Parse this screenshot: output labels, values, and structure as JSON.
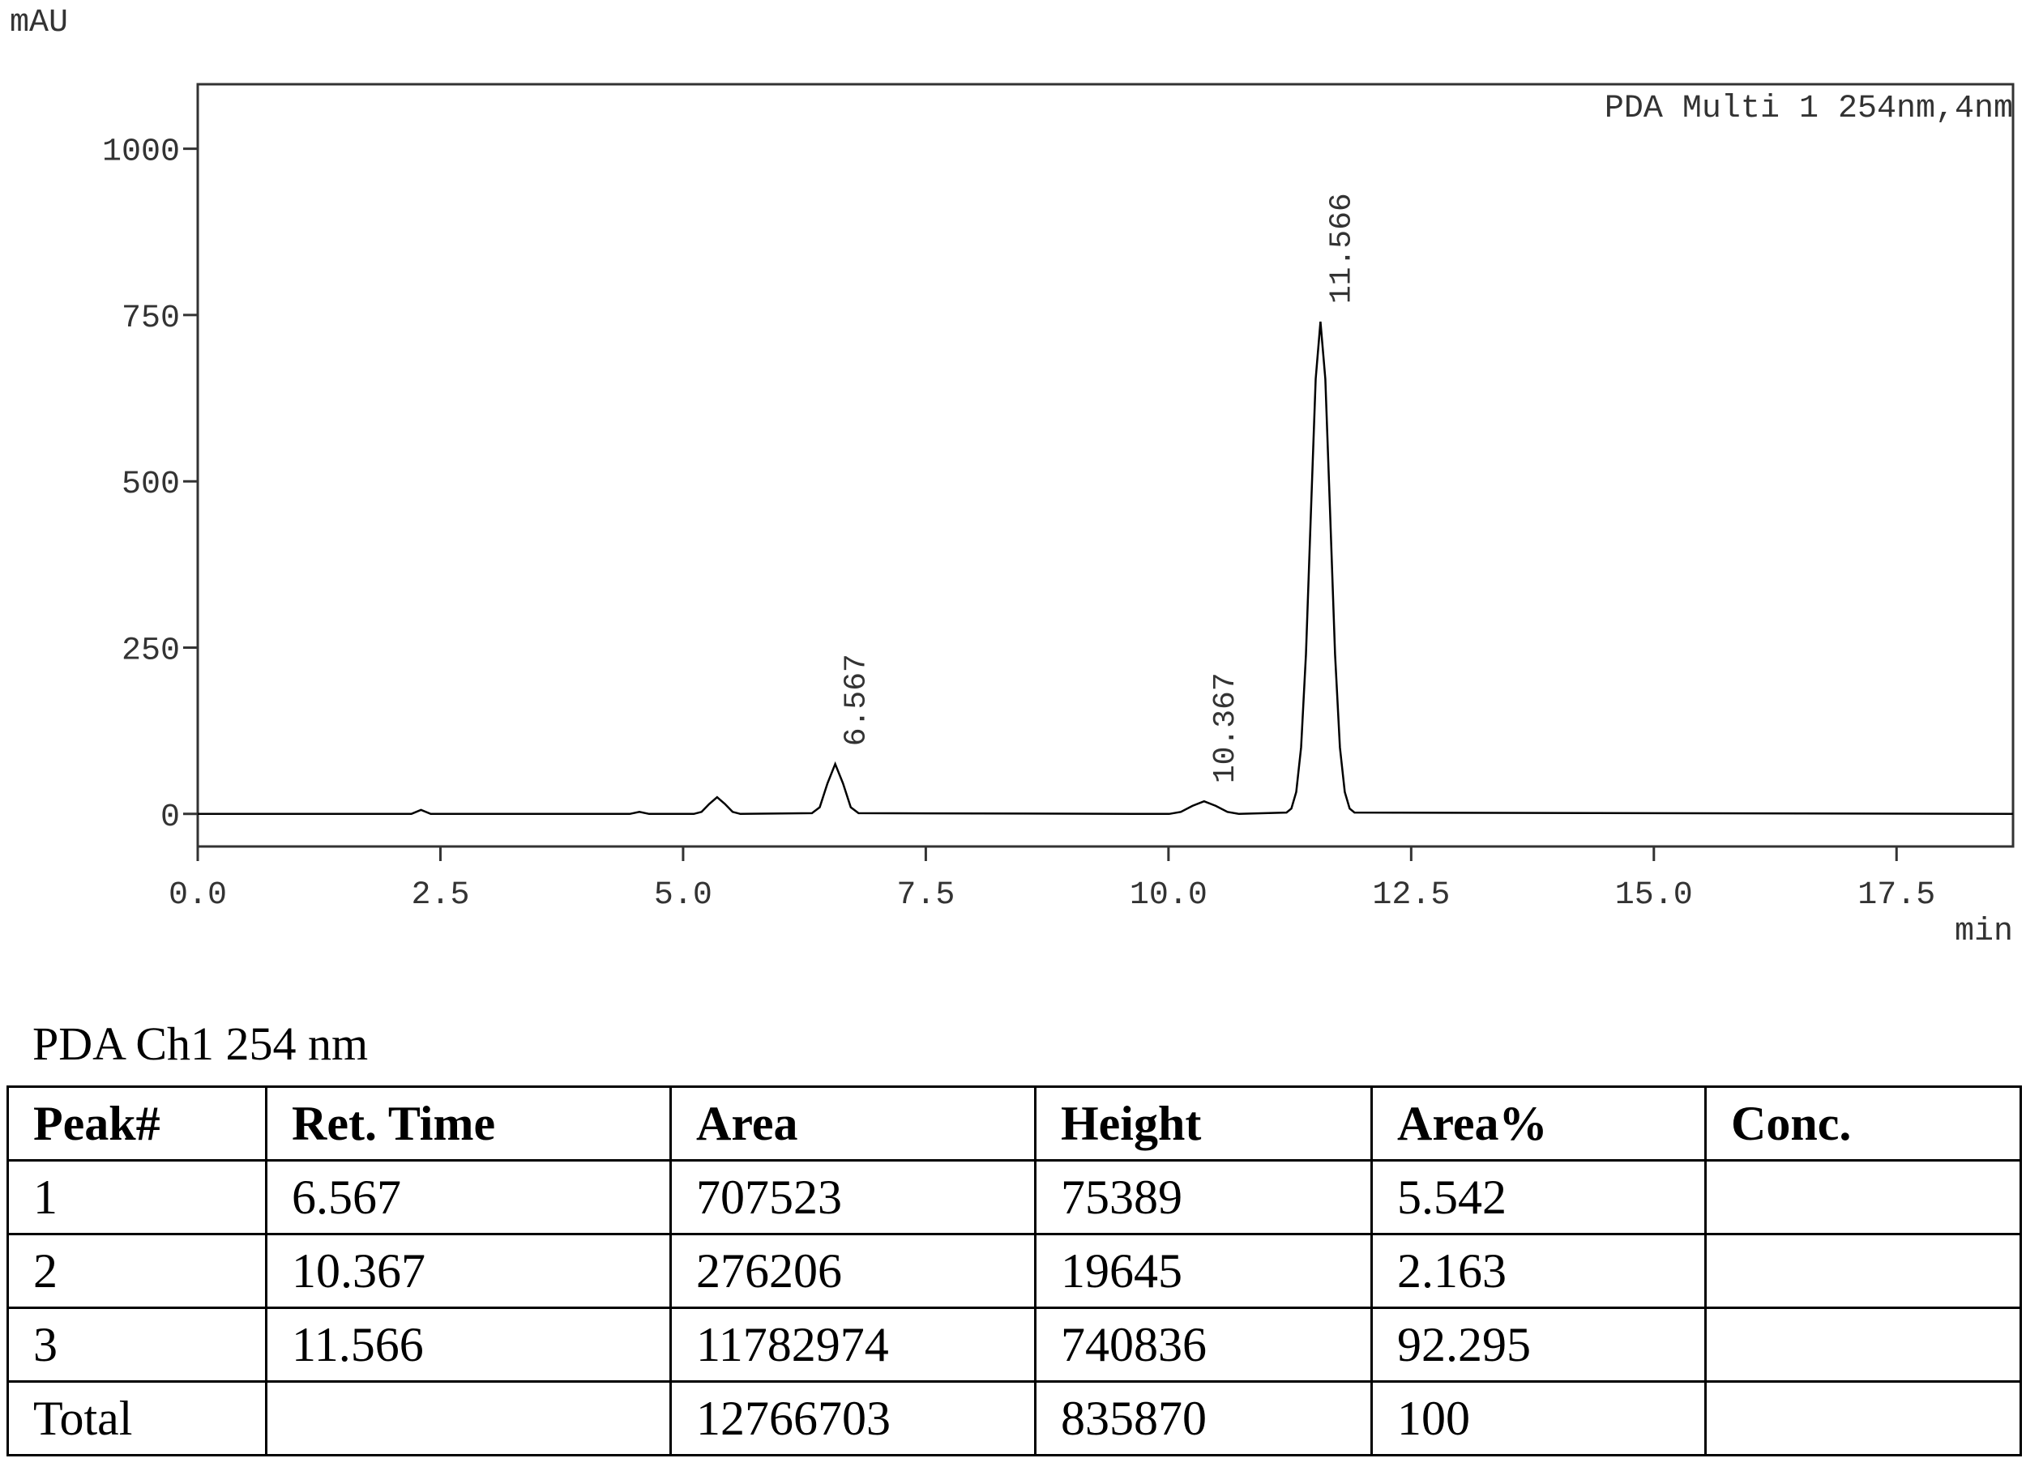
{
  "chart_data": {
    "type": "line",
    "y_label": "mAU",
    "x_label": "min",
    "x": [
      0,
      2.2,
      2.3,
      2.4,
      4.45,
      4.55,
      4.65,
      5.11,
      5.19,
      5.27,
      5.35,
      5.43,
      5.51,
      5.59,
      6.327,
      6.407,
      6.487,
      6.567,
      6.647,
      6.727,
      6.807,
      10.007,
      10.127,
      10.247,
      10.367,
      10.487,
      10.607,
      10.727,
      11.216,
      11.266,
      11.316,
      11.366,
      11.416,
      11.466,
      11.516,
      11.566,
      11.616,
      11.666,
      11.716,
      11.766,
      11.816,
      11.866,
      11.916,
      18.7
    ],
    "series": [
      {
        "name": "PDA Multi 1 254nm,4nm",
        "color": "#000000",
        "values": [
          0,
          0,
          6,
          0,
          0,
          3,
          0,
          0,
          3,
          15,
          25,
          15,
          3,
          0,
          1,
          10,
          46,
          75,
          46,
          10,
          1,
          0,
          3,
          12,
          19,
          12,
          3,
          0,
          2,
          8,
          33,
          100,
          240,
          449,
          654,
          740,
          654,
          449,
          240,
          100,
          33,
          8,
          2,
          0
        ]
      }
    ],
    "annotations": [
      {
        "x": 6.567,
        "y": 75,
        "label": "6.567"
      },
      {
        "x": 10.367,
        "y": 19,
        "label": "10.367"
      },
      {
        "x": 11.566,
        "y": 740,
        "label": "11.566"
      }
    ],
    "xlim": [
      0,
      18.7
    ],
    "ylim": [
      -49,
      1097
    ],
    "xticks": [
      {
        "value": 0,
        "label": "0.0"
      },
      2.5,
      {
        "value": 5,
        "label": "5.0"
      },
      7.5,
      {
        "value": 10,
        "label": "10.0"
      },
      12.5,
      {
        "value": 15,
        "label": "15.0"
      },
      17.5
    ],
    "yticks": [
      0,
      250,
      500,
      750,
      1000
    ],
    "legend_position": "top-right"
  },
  "table": {
    "title": "PDA Ch1 254 nm",
    "header": [
      "Peak#",
      "Ret. Time",
      "Area",
      "Height",
      "Area%",
      "Conc."
    ],
    "rows": [
      [
        1,
        6.567,
        707523,
        75389,
        5.542,
        null
      ],
      [
        2,
        10.367,
        276206,
        19645,
        2.163,
        null
      ],
      [
        3,
        11.566,
        11782974,
        740836,
        92.295,
        null
      ],
      [
        "Total",
        null,
        12766703,
        835870,
        100,
        null
      ]
    ]
  }
}
